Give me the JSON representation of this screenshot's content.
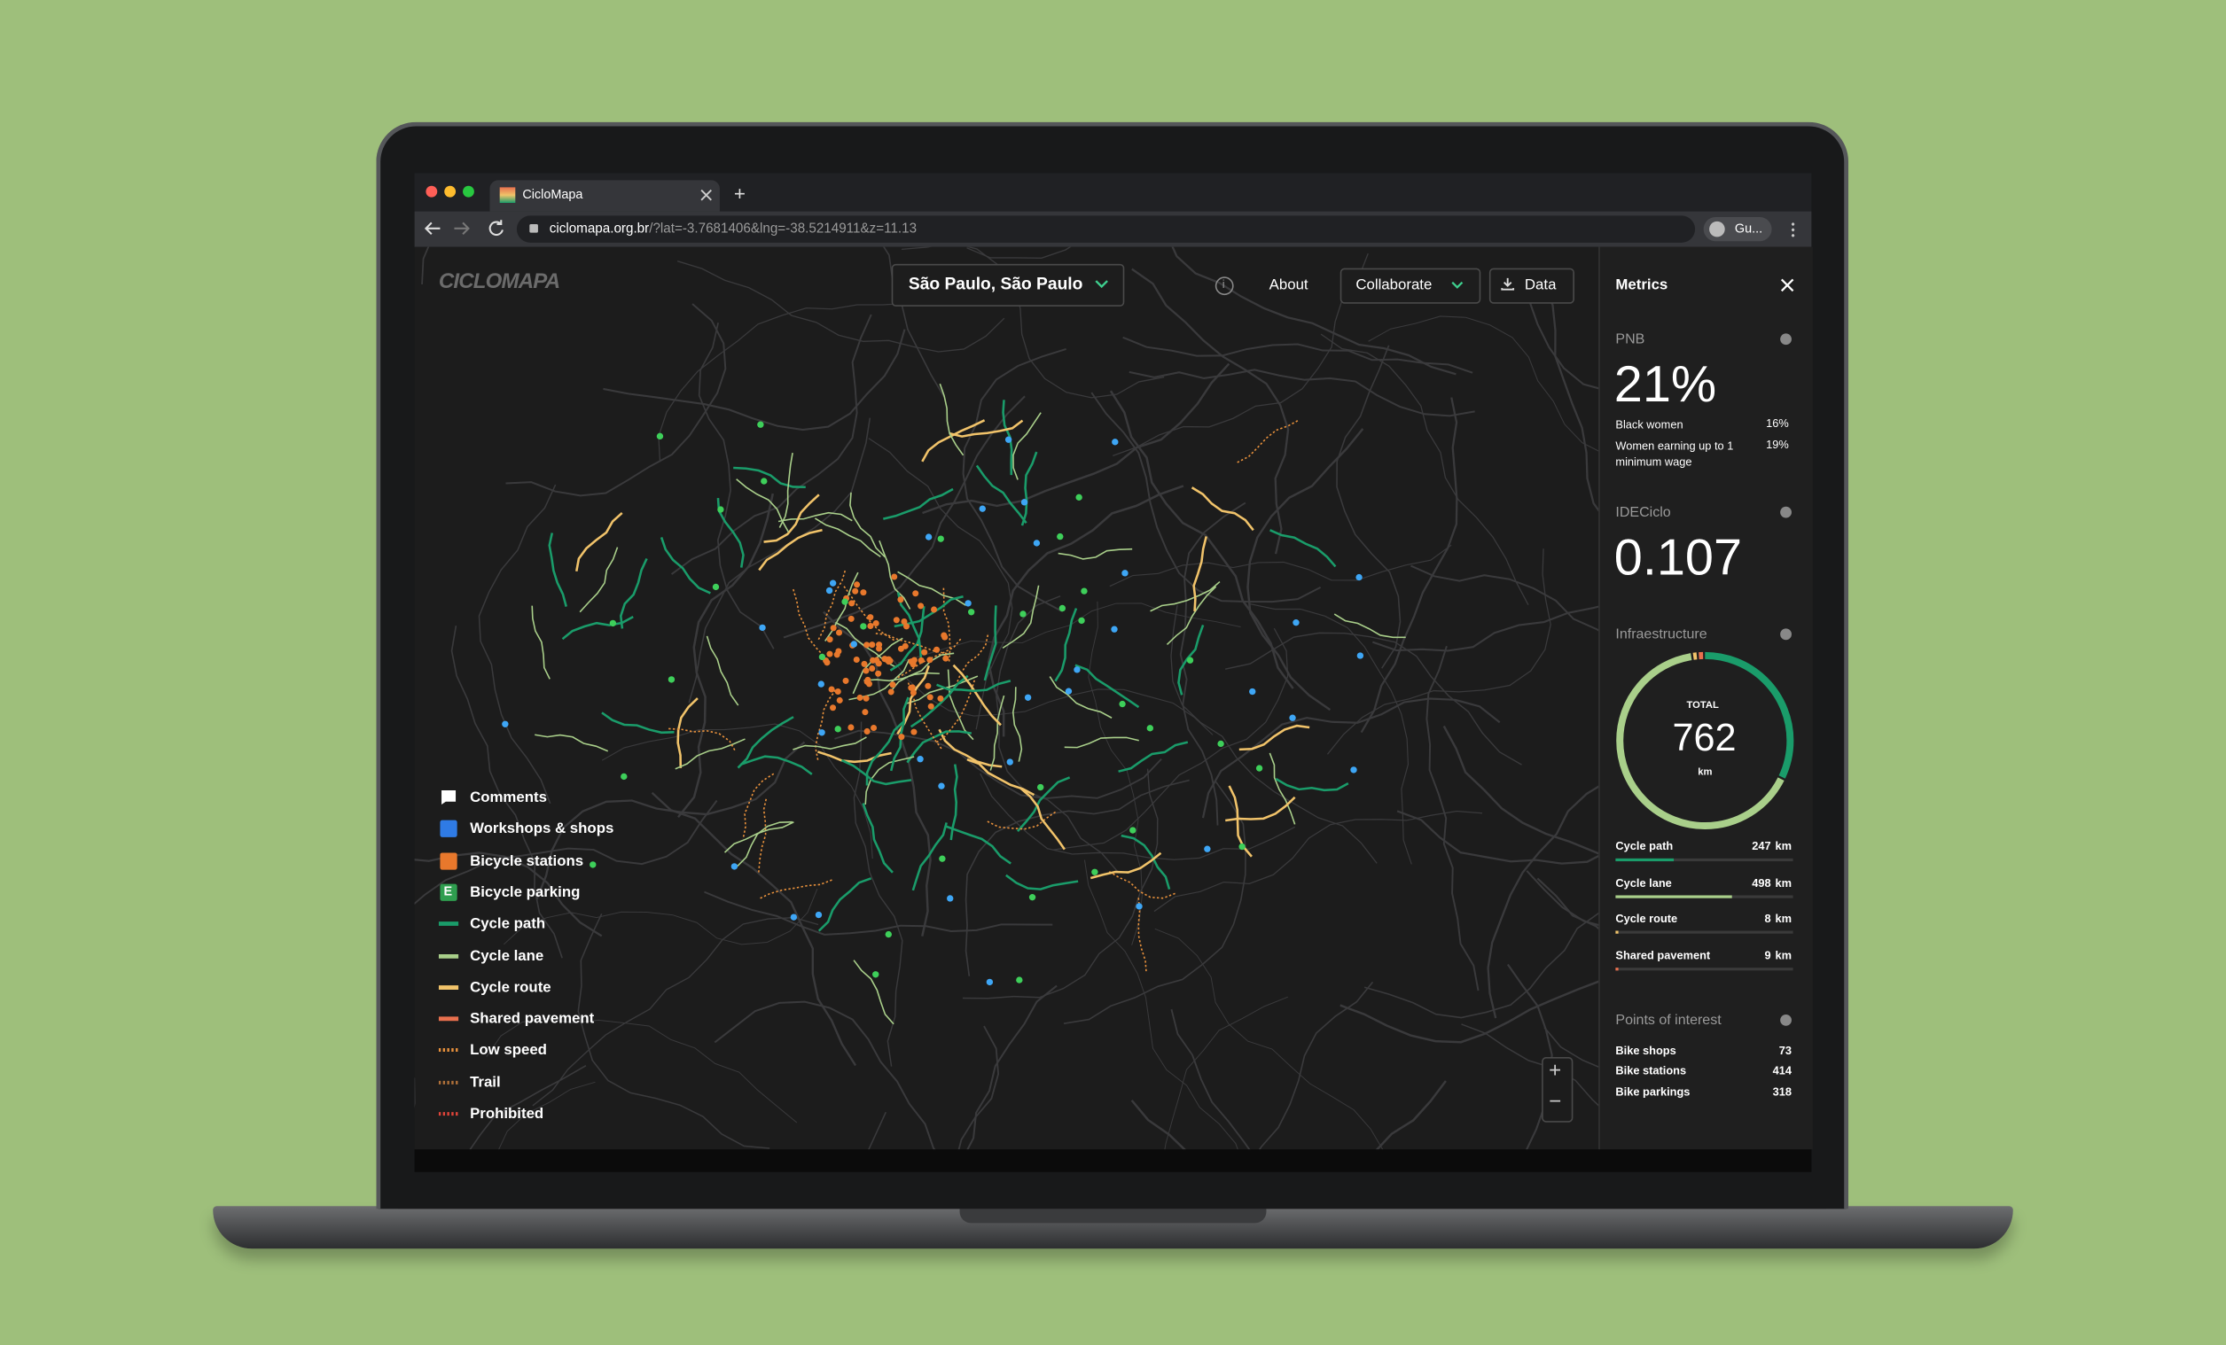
{
  "browser": {
    "tab_title": "CicloMapa",
    "new_tab": "+",
    "url_host": "ciclomapa.org.br",
    "url_path": "/?lat=-3.7681406&lng=-38.5214911&z=11.13",
    "profile": "Gu..."
  },
  "header": {
    "logo": "CICLOMAPA",
    "city": "São Paulo, São Paulo",
    "info": "i",
    "about": "About",
    "collaborate": "Collaborate",
    "data": "Data"
  },
  "legend": [
    {
      "label": "Comments",
      "icon": "comment",
      "color": "#ffffff"
    },
    {
      "label": "Workshops & shops",
      "icon": "square",
      "color": "#2f7be5"
    },
    {
      "label": "Bicycle stations",
      "icon": "square",
      "color": "#e8782c"
    },
    {
      "label": "Bicycle parking",
      "icon": "square",
      "color": "#2f9e4f",
      "icon_text": "E"
    },
    {
      "label": "Cycle path",
      "icon": "line",
      "color": "#1a9c6a"
    },
    {
      "label": "Cycle lane",
      "icon": "line",
      "color": "#a9cf8a"
    },
    {
      "label": "Cycle route",
      "icon": "line",
      "color": "#f1c36a"
    },
    {
      "label": "Shared pavement",
      "icon": "line",
      "color": "#e8704e"
    },
    {
      "label": "Low speed",
      "icon": "dashed",
      "color": "#e8913c"
    },
    {
      "label": "Trail",
      "icon": "dashed",
      "color": "#b0713a"
    },
    {
      "label": "Prohibited",
      "icon": "dashed",
      "color": "#e0443a"
    }
  ],
  "zoom": {
    "in": "+",
    "out": "−"
  },
  "metrics": {
    "title": "Metrics",
    "pnb": {
      "label": "PNB",
      "value": "21%",
      "rows": [
        {
          "label": "Black women",
          "value": "16%"
        },
        {
          "label": "Women earning up to 1 minimum wage",
          "value": "19%"
        }
      ]
    },
    "ideciclo": {
      "label": "IDECiclo",
      "value": "0.107"
    },
    "infrastructure": {
      "label": "Infraestructure",
      "total_label": "TOTAL",
      "total": 762,
      "unit": "km",
      "rows": [
        {
          "label": "Cycle path",
          "value": 247,
          "color": "#1a9c6a"
        },
        {
          "label": "Cycle lane",
          "value": 498,
          "color": "#a9cf8a"
        },
        {
          "label": "Cycle route",
          "value": 8,
          "color": "#f1c36a"
        },
        {
          "label": "Shared pavement",
          "value": 9,
          "color": "#e8704e"
        }
      ]
    },
    "poi": {
      "label": "Points of interest",
      "rows": [
        {
          "label": "Bike shops",
          "value": 73
        },
        {
          "label": "Bike stations",
          "value": 414
        },
        {
          "label": "Bike parkings",
          "value": 318
        }
      ]
    }
  }
}
